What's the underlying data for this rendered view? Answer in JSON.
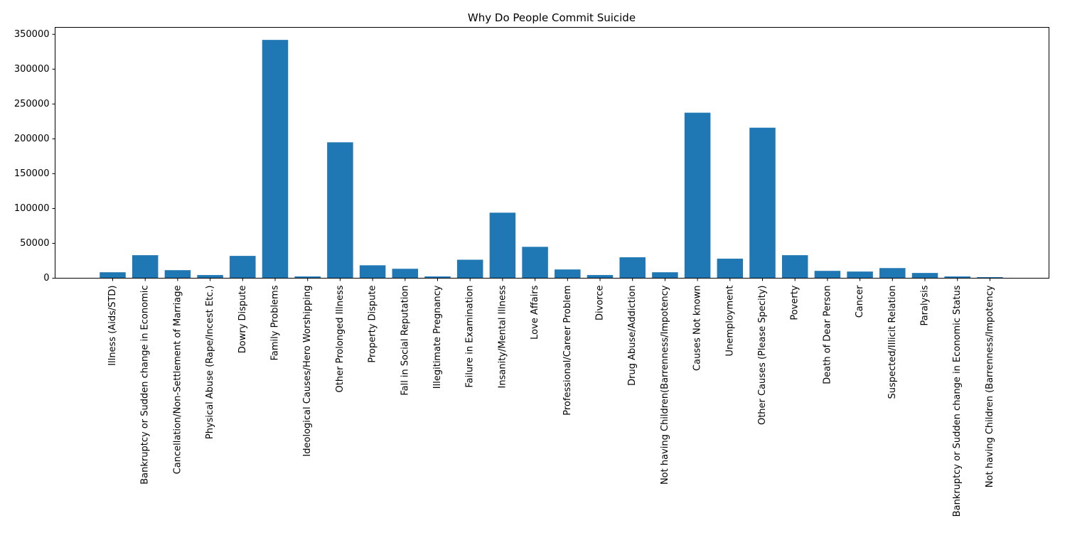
{
  "chart_data": {
    "type": "bar",
    "title": "Why Do People Commit Suicide",
    "xlabel": "",
    "ylabel": "",
    "ylim": [
      0,
      360000
    ],
    "yticks": [
      0,
      50000,
      100000,
      150000,
      200000,
      250000,
      300000,
      350000
    ],
    "grid": false,
    "color": "#1f77b4",
    "categories": [
      "Illness (Aids/STD)",
      "Bankruptcy or Sudden change in Economic",
      "Cancellation/Non-Settlement of Marriage",
      "Physical Abuse (Rape/Incest Etc.)",
      "Dowry Dispute",
      "Family Problems",
      "Ideological Causes/Hero Worshipping",
      "Other Prolonged Illness",
      "Property Dispute",
      "Fall in Social Reputation",
      "Illegitimate Pregnancy",
      "Failure in Examination",
      "Insanity/Mental Illness",
      "Love Affairs",
      "Professional/Career Problem",
      "Divorce",
      "Drug Abuse/Addiction",
      "Not having Children(Barrenness/Impotency",
      "Causes Not known",
      "Unemployment",
      "Other Causes (Please Specity)",
      "Poverty",
      "Death of Dear Person",
      "Cancer",
      "Suspected/Illicit Relation",
      "Paralysis",
      "Bankruptcy or Sudden change in Economic Status",
      "Not having Children (Barrenness/Impotency"
    ],
    "values": [
      8500,
      33000,
      11500,
      4500,
      32000,
      342000,
      2500,
      195000,
      18500,
      13500,
      2500,
      26500,
      94000,
      45000,
      12500,
      4500,
      30000,
      8500,
      237500,
      28000,
      216000,
      33000,
      10500,
      9500,
      14500,
      7500,
      2500,
      1500
    ]
  }
}
